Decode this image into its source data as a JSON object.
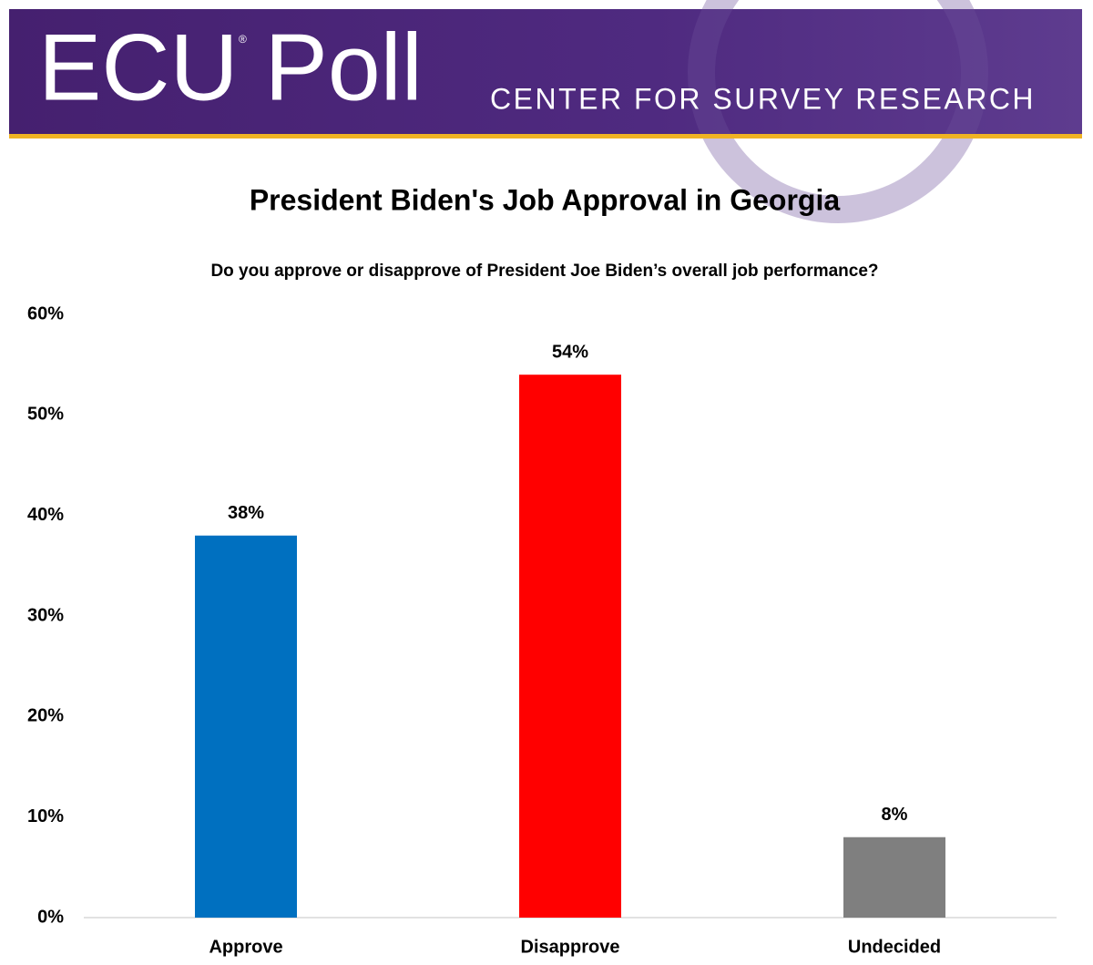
{
  "banner": {
    "brand": "ECU Poll",
    "registered": "®",
    "tagline": "CENTER FOR SURVEY RESEARCH"
  },
  "chart_data": {
    "type": "bar",
    "title": "President Biden's Job Approval in Georgia",
    "subtitle": "Do you approve or disapprove of President Joe Biden’s overall job performance?",
    "categories": [
      "Approve",
      "Disapprove",
      "Undecided"
    ],
    "values": [
      38,
      54,
      8
    ],
    "value_labels": [
      "38%",
      "54%",
      "8%"
    ],
    "colors": [
      "#0070c0",
      "#ff0000",
      "#7f7f7f"
    ],
    "ylim": [
      0,
      60
    ],
    "yticks": [
      {
        "value": 0,
        "label": "0%"
      },
      {
        "value": 10,
        "label": "10%"
      },
      {
        "value": 20,
        "label": "20%"
      },
      {
        "value": 30,
        "label": "30%"
      },
      {
        "value": 40,
        "label": "40%"
      },
      {
        "value": 50,
        "label": "50%"
      },
      {
        "value": 60,
        "label": "60%"
      }
    ],
    "grid": false
  }
}
